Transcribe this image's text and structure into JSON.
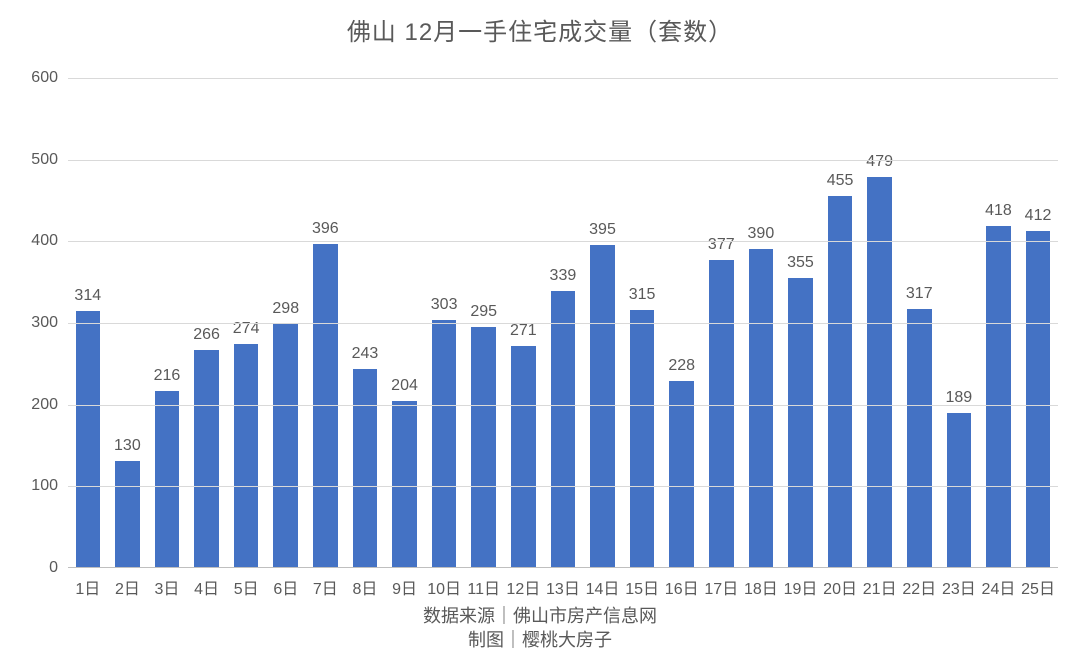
{
  "chart": {
    "type": "bar",
    "title": "佛山 12月一手住宅成交量（套数）",
    "title_fontsize": 24,
    "title_color": "#595959",
    "categories": [
      "1日",
      "2日",
      "3日",
      "4日",
      "5日",
      "6日",
      "7日",
      "8日",
      "9日",
      "10日",
      "11日",
      "12日",
      "13日",
      "14日",
      "15日",
      "16日",
      "17日",
      "18日",
      "19日",
      "20日",
      "21日",
      "22日",
      "23日",
      "24日",
      "25日"
    ],
    "values": [
      314,
      130,
      216,
      266,
      274,
      298,
      396,
      243,
      204,
      303,
      295,
      271,
      339,
      395,
      315,
      228,
      377,
      390,
      355,
      455,
      479,
      317,
      189,
      418,
      412
    ],
    "bar_color": "#4472c4",
    "bar_width": 0.62,
    "ylim": [
      0,
      600
    ],
    "ytick_step": 100,
    "grid_color": "#d9d9d9",
    "axis_color": "#bfbfbf",
    "background_color": "#ffffff",
    "label_color": "#595959",
    "label_fontsize": 16,
    "axis_fontsize": 16,
    "footer_line1": "数据来源｜佛山市房产信息网",
    "footer_line2": "制图｜樱桃大房子",
    "footer_fontsize": 18
  }
}
